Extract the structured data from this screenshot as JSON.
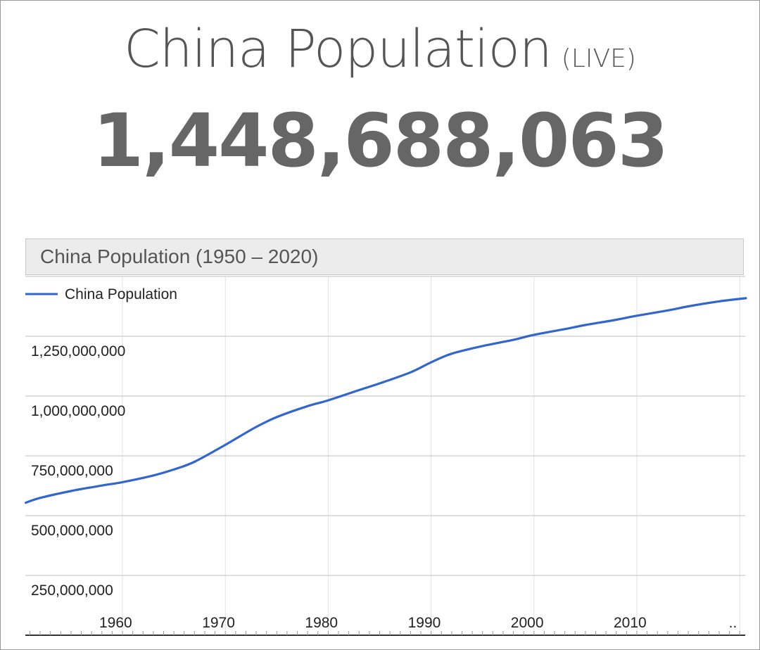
{
  "header": {
    "title": "China Population",
    "live_tag": "(LIVE)",
    "counter": "1,448,688,063"
  },
  "chart_data": {
    "type": "line",
    "title": "China Population (1950 – 2020)",
    "xlabel": "",
    "ylabel": "",
    "legend_position": "top-left",
    "grid": true,
    "x_ticks": [
      "1960",
      "1970",
      "1980",
      "1990",
      "2000",
      "2010",
      ".."
    ],
    "y_ticks": [
      "250,000,000",
      "500,000,000",
      "750,000,000",
      "1,000,000,000",
      "1,250,000,000"
    ],
    "xlim": [
      1950.6,
      2020.6
    ],
    "ylim": [
      0,
      1500000000
    ],
    "series": [
      {
        "name": "China Population",
        "color": "#3366cc",
        "x": [
          1950.6,
          1952,
          1955,
          1958,
          1960,
          1963,
          1965,
          1967,
          1970,
          1973,
          1975,
          1978,
          1980,
          1983,
          1985,
          1988,
          1990,
          1992,
          1995,
          1998,
          2000,
          2003,
          2005,
          2008,
          2010,
          2013,
          2015,
          2018,
          2020.6
        ],
        "y": [
          554000000,
          574000000,
          603000000,
          626000000,
          640000000,
          668000000,
          693000000,
          725000000,
          796000000,
          871000000,
          912000000,
          958000000,
          982000000,
          1025000000,
          1053000000,
          1099000000,
          1141000000,
          1177000000,
          1209000000,
          1235000000,
          1256000000,
          1280000000,
          1297000000,
          1319000000,
          1336000000,
          1358000000,
          1375000000,
          1396000000,
          1409000000
        ]
      }
    ]
  }
}
